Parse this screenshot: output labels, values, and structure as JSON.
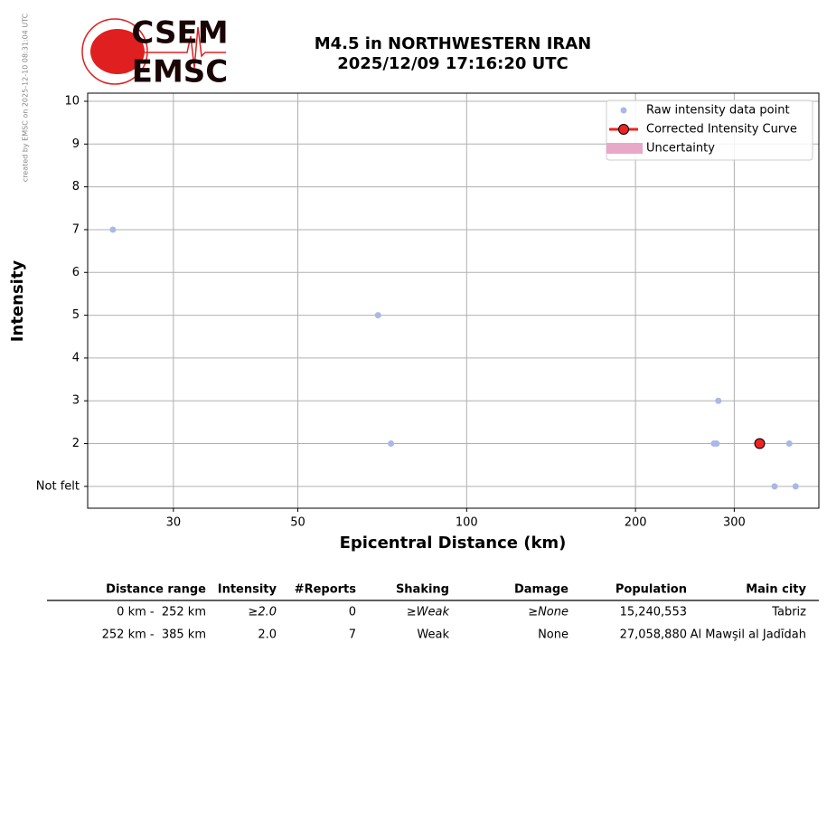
{
  "watermark": "created by EMSC on 2025-12-10 08:31:04 UTC",
  "logo": {
    "top": "CSEM",
    "bottom": "EMSC"
  },
  "chart_data": {
    "type": "scatter",
    "title": "M4.5 in NORTHWESTERN IRAN",
    "subtitle": "2025/12/09 17:16:20 UTC",
    "xlabel": "Epicentral Distance (km)",
    "ylabel": "Intensity",
    "xscale": "log",
    "xlim": [
      21.1,
      424.6
    ],
    "ylim": [
      0.49,
      10.19
    ],
    "xticks": [
      30,
      50,
      100,
      200,
      300
    ],
    "yticks": [
      {
        "value": 1,
        "label": "Not felt"
      },
      2,
      3,
      4,
      5,
      6,
      7,
      8,
      9,
      10
    ],
    "grid": true,
    "legend": "upper right",
    "series": [
      {
        "name": "Raw intensity data point",
        "color": "#aab8e8",
        "style": "dot",
        "x": [
          23.4,
          69.5,
          73.3,
          281,
          276,
          279,
          376,
          354,
          386
        ],
        "values": [
          7,
          5,
          2,
          3,
          2,
          2,
          2,
          1,
          1
        ]
      },
      {
        "name": "Corrected Intensity Curve",
        "color": "#ee2222",
        "style": "line-marker",
        "x": [
          333
        ],
        "values": [
          2
        ]
      },
      {
        "name": "Uncertainty",
        "color": "#e8a8c8",
        "style": "band",
        "x": [],
        "values": []
      }
    ]
  },
  "table": {
    "columns": [
      "Distance range",
      "Intensity",
      "#Reports",
      "Shaking",
      "Damage",
      "Population",
      "Main city"
    ],
    "rows": [
      [
        "0 km -  252 km",
        "≥2.0",
        "0",
        "≥Weak",
        "≥None",
        "15,240,553",
        "Tabriz"
      ],
      [
        "252 km -  385 km",
        "2.0",
        "7",
        "Weak",
        "None",
        "27,058,880",
        "Al Mawşil al Jadīdah"
      ]
    ]
  }
}
